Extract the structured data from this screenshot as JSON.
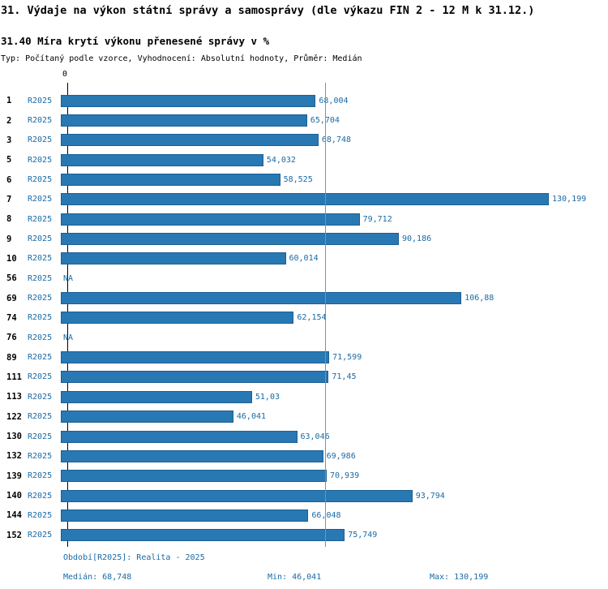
{
  "chart_data": {
    "type": "bar",
    "orientation": "horizontal",
    "title": "31. Výdaje na výkon státní správy a samosprávy (dle výkazu FIN 2 - 12 M k 31.12.)",
    "subtitle": "31.40 Míra krytí výkonu přenesené správy v %",
    "meta": "Typ: Počítaný podle vzorce, Vyhodnocení: Absolutní hodnoty, Průměr: Medián",
    "series_label": "R2025",
    "axis_zero_label": "0",
    "categories": [
      "1",
      "2",
      "3",
      "5",
      "6",
      "7",
      "8",
      "9",
      "10",
      "56",
      "69",
      "74",
      "76",
      "89",
      "111",
      "113",
      "122",
      "130",
      "132",
      "139",
      "140",
      "144",
      "152"
    ],
    "values": [
      68.004,
      65.704,
      68.748,
      54.032,
      58.525,
      130.199,
      79.712,
      90.186,
      60.014,
      null,
      106.88,
      62.154,
      null,
      71.599,
      71.45,
      51.03,
      46.041,
      63.046,
      69.986,
      70.939,
      93.794,
      66.048,
      75.749
    ],
    "value_labels": [
      "68,004",
      "65,704",
      "68,748",
      "54,032",
      "58,525",
      "130,199",
      "79,712",
      "90,186",
      "60,014",
      "NA",
      "106,88",
      "62,154",
      "NA",
      "71,599",
      "71,45",
      "51,03",
      "46,041",
      "63,046",
      "69,986",
      "70,939",
      "93,794",
      "66,048",
      "75,749"
    ],
    "median": 68.748,
    "median_line": true,
    "xlim": [
      0,
      140
    ],
    "bar_color": "#2878b4",
    "grid": false,
    "legend": "none",
    "annotations": {
      "period": "Období[R2025]: Realita - 2025",
      "median": "Medián: 68,748",
      "min": "Min: 46,041",
      "max": "Max: 130,199"
    }
  }
}
